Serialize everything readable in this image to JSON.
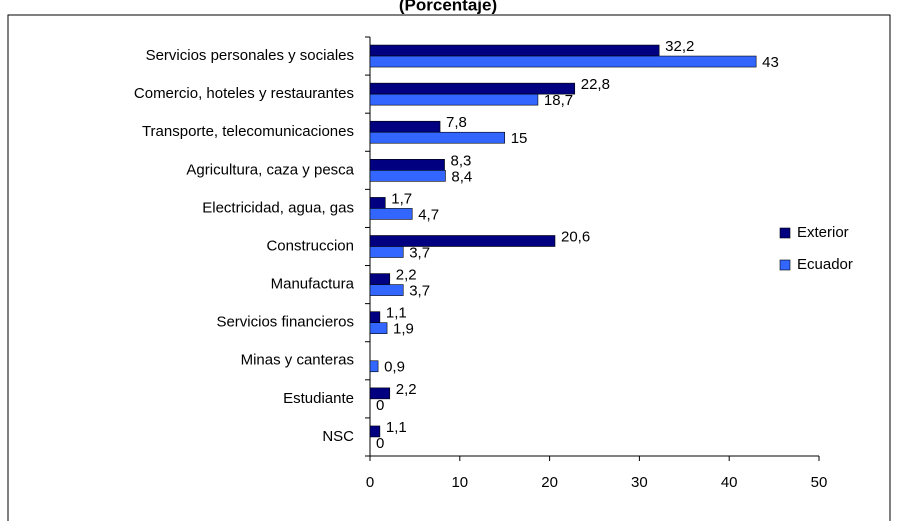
{
  "chart_data": {
    "type": "bar",
    "orientation": "horizontal",
    "title": "(Porcentaje)",
    "categories": [
      "Servicios personales y sociales",
      "Comercio, hoteles y restaurantes",
      "Transporte, telecomunicaciones",
      "Agricultura, caza y pesca",
      "Electricidad, agua, gas",
      "Construccion",
      "Manufactura",
      "Servicios financieros",
      "Minas y canteras",
      "Estudiante",
      "NSC"
    ],
    "series": [
      {
        "name": "Exterior",
        "color": "#000080",
        "values": [
          32.2,
          22.8,
          7.8,
          8.3,
          1.7,
          20.6,
          2.2,
          1.1,
          null,
          2.2,
          1.1
        ],
        "value_labels": [
          "32,2",
          "22,8",
          "7,8",
          "8,3",
          "1,7",
          "20,6",
          "2,2",
          "1,1",
          null,
          "2,2",
          "1,1"
        ]
      },
      {
        "name": "Ecuador",
        "color": "#3366ff",
        "values": [
          43,
          18.7,
          15,
          8.4,
          4.7,
          3.7,
          3.7,
          1.9,
          0.9,
          0,
          0
        ],
        "value_labels": [
          "43",
          "18,7",
          "15",
          "8,4",
          "4,7",
          "3,7",
          "3,7",
          "1,9",
          "0,9",
          "0",
          "0"
        ]
      }
    ],
    "xlim": [
      0,
      50
    ],
    "xticks": [
      0,
      10,
      20,
      30,
      40,
      50
    ],
    "legend": "right"
  }
}
